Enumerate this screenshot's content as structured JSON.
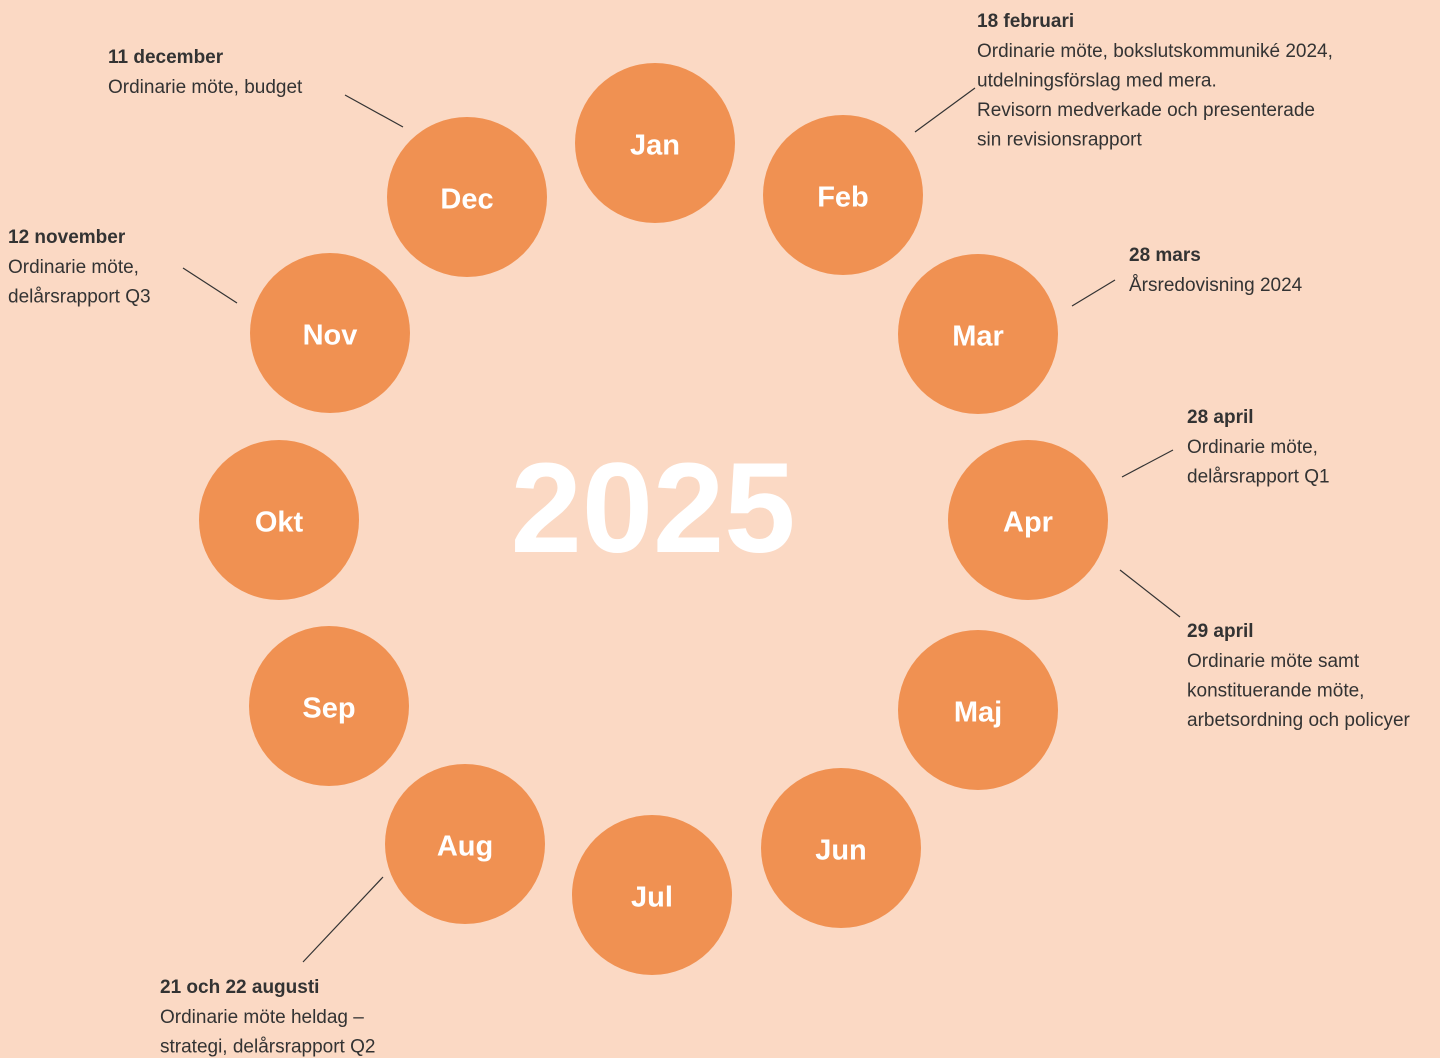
{
  "year": "2025",
  "months": [
    "Jan",
    "Feb",
    "Mar",
    "Apr",
    "Maj",
    "Jun",
    "Jul",
    "Aug",
    "Sep",
    "Okt",
    "Nov",
    "Dec"
  ],
  "annotations": [
    {
      "title": "11 december",
      "lines": [
        "Ordinarie möte, budget"
      ]
    },
    {
      "title": "18 februari",
      "lines": [
        "Ordinarie möte, bokslutskommuniké 2024,",
        "utdelningsförslag med mera.",
        "Revisorn medverkade och presenterade",
        "sin revisionsrapport"
      ]
    },
    {
      "title": "12 november",
      "lines": [
        "Ordinarie möte,",
        "delårsrapport Q3"
      ]
    },
    {
      "title": "28 mars",
      "lines": [
        "Årsredovisning 2024"
      ]
    },
    {
      "title": "28 april",
      "lines": [
        "Ordinarie möte,",
        "delårsrapport Q1"
      ]
    },
    {
      "title": "29 april",
      "lines": [
        "Ordinarie möte samt",
        "konstituerande möte,",
        "arbetsordning och policyer"
      ]
    },
    {
      "title": "21 och 22 augusti",
      "lines": [
        "Ordinarie möte heldag –",
        "strategi, delårsrapport Q2"
      ]
    }
  ]
}
